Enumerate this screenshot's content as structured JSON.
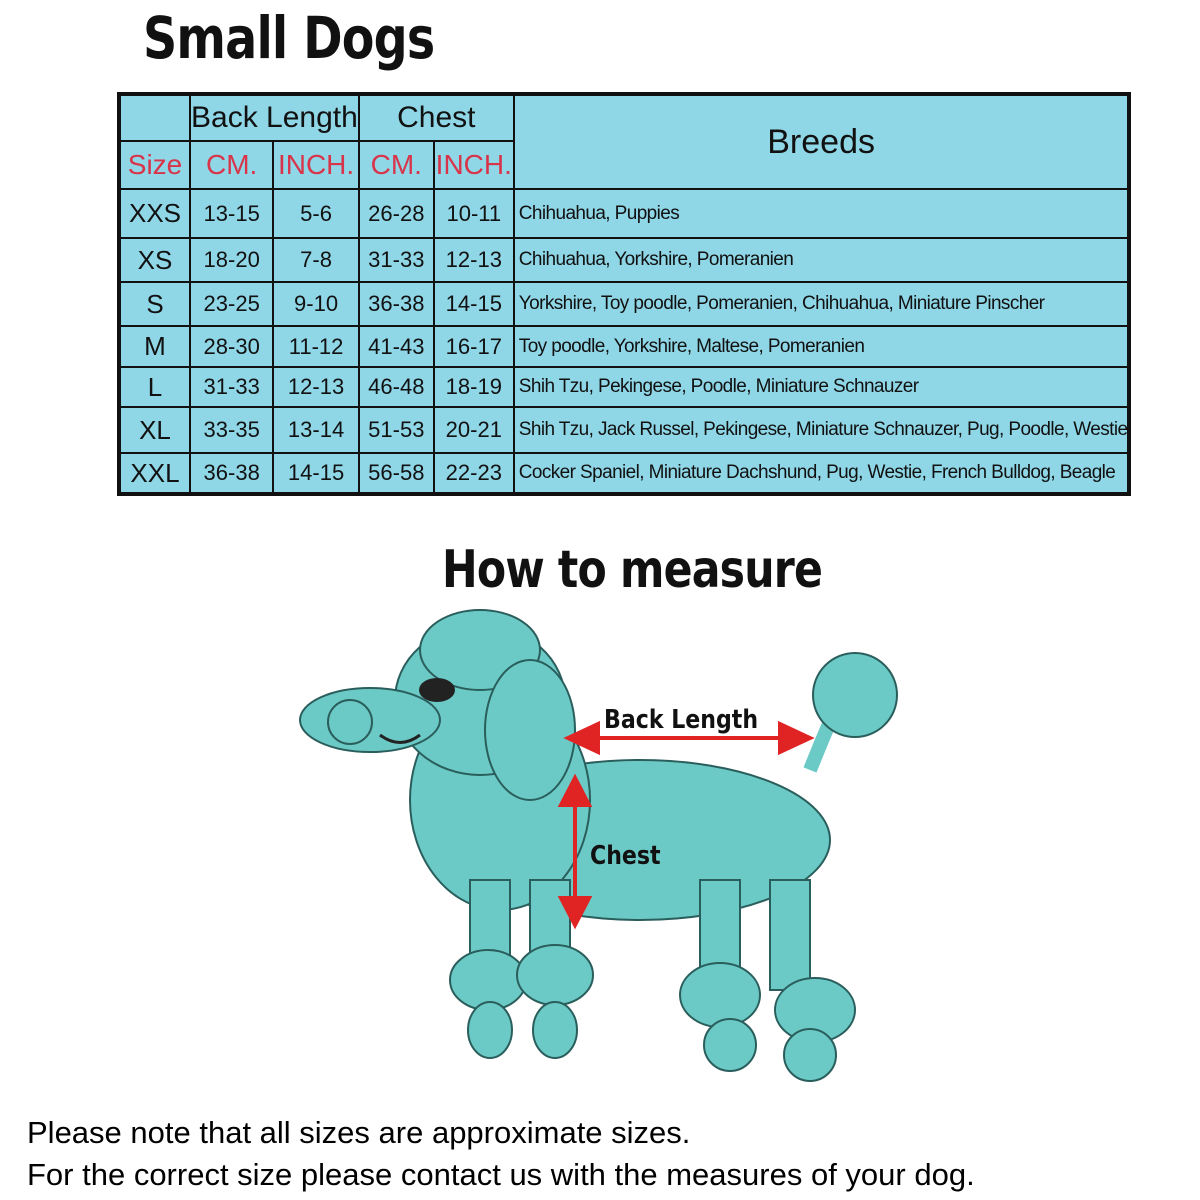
{
  "title": "Small Dogs",
  "table": {
    "group_headers": {
      "back_length": "Back Length",
      "chest": "Chest",
      "breeds": "Breeds"
    },
    "sub_headers": {
      "size": "Size",
      "cm": "CM.",
      "inch": "INCH."
    },
    "rows": [
      {
        "size": "XXS",
        "back_cm": "13-15",
        "back_inch": "5-6",
        "chest_cm": "26-28",
        "chest_inch": "10-11",
        "breeds": "Chihuahua, Puppies"
      },
      {
        "size": "XS",
        "back_cm": "18-20",
        "back_inch": "7-8",
        "chest_cm": "31-33",
        "chest_inch": "12-13",
        "breeds": "Chihuahua, Yorkshire, Pomeranien"
      },
      {
        "size": "S",
        "back_cm": "23-25",
        "back_inch": "9-10",
        "chest_cm": "36-38",
        "chest_inch": "14-15",
        "breeds": "Yorkshire, Toy poodle, Pomeranien, Chihuahua, Miniature Pinscher"
      },
      {
        "size": "M",
        "back_cm": "28-30",
        "back_inch": "11-12",
        "chest_cm": "41-43",
        "chest_inch": "16-17",
        "breeds": "Toy poodle, Yorkshire, Maltese, Pomeranien"
      },
      {
        "size": "L",
        "back_cm": "31-33",
        "back_inch": "12-13",
        "chest_cm": "46-48",
        "chest_inch": "18-19",
        "breeds": "Shih Tzu, Pekingese, Poodle, Miniature Schnauzer"
      },
      {
        "size": "XL",
        "back_cm": "33-35",
        "back_inch": "13-14",
        "chest_cm": "51-53",
        "chest_inch": "20-21",
        "breeds": "Shih Tzu, Jack Russel, Pekingese, Miniature Schnauzer, Pug, Poodle, Westie"
      },
      {
        "size": "XXL",
        "back_cm": "36-38",
        "back_inch": "14-15",
        "chest_cm": "56-58",
        "chest_inch": "22-23",
        "breeds": "Cocker Spaniel, Miniature Dachshund, Pug, Westie, French Bulldog, Beagle"
      }
    ]
  },
  "measure": {
    "title": "How to measure",
    "back_length_label": "Back Length",
    "chest_label": "Chest"
  },
  "notes": [
    "Please note that all sizes are approximate sizes.",
    "For the correct size please contact us with the measures of your dog."
  ],
  "colors": {
    "table_bg": "#8fd6e6",
    "header_red": "#d8344a",
    "dog": "#6ccac6",
    "arrow": "#e02424"
  }
}
